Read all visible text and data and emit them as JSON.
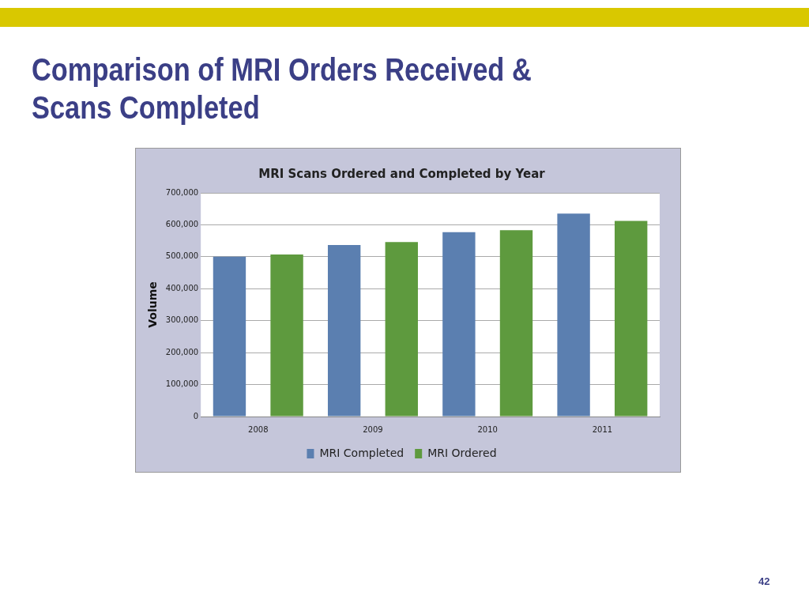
{
  "chart_data": {
    "type": "bar",
    "title": "Comparison of MRI Orders Received & Scans Completed",
    "subtitle": "MRI Scans Ordered and Completed by Year",
    "ylabel": "Volume",
    "categories": [
      "2008",
      "2009",
      "2010",
      "2011"
    ],
    "series": [
      {
        "name": "MRI Completed",
        "color": "#5b7fb0",
        "values": [
          500000,
          537000,
          577000,
          635000
        ]
      },
      {
        "name": "MRI Ordered",
        "color": "#5e9a3e",
        "values": [
          507000,
          546000,
          583000,
          612000
        ]
      }
    ],
    "ylim": [
      0,
      700000
    ],
    "yticks": [
      {
        "value": 0,
        "label": "0"
      },
      {
        "value": 100000,
        "label": "100,000"
      },
      {
        "value": 200000,
        "label": "200,000"
      },
      {
        "value": 300000,
        "label": "300,000"
      },
      {
        "value": 400000,
        "label": "400,000"
      },
      {
        "value": 500000,
        "label": "500,000"
      },
      {
        "value": 600000,
        "label": "600,000"
      },
      {
        "value": 700000,
        "label": "700,000"
      }
    ],
    "grid": "y",
    "legend": "bottom",
    "annotations": [
      "42"
    ]
  }
}
